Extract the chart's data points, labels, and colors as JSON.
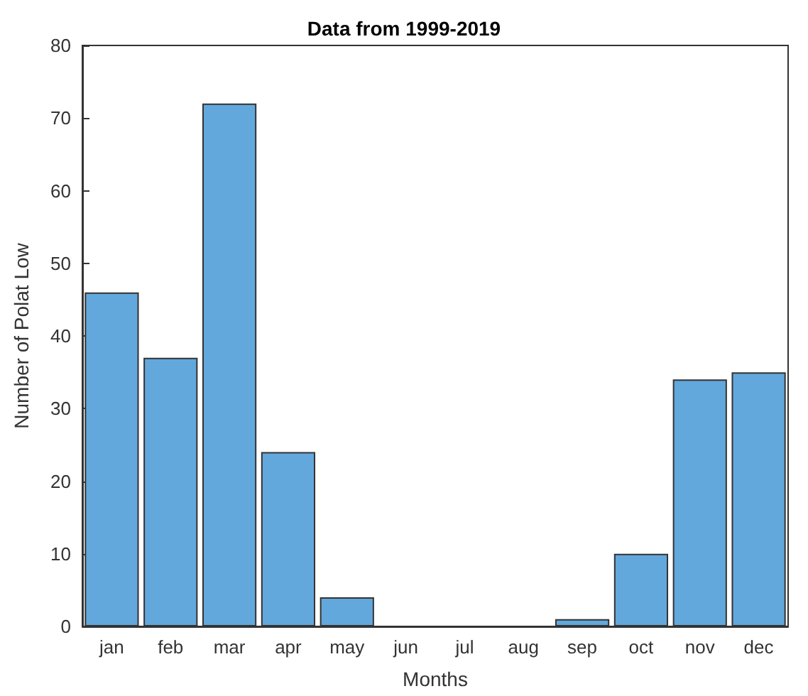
{
  "chart_data": {
    "type": "bar",
    "title": "Data from 1999-2019",
    "xlabel": "Months",
    "ylabel": "Number of Polat Low",
    "categories": [
      "jan",
      "feb",
      "mar",
      "apr",
      "may",
      "jun",
      "jul",
      "aug",
      "sep",
      "oct",
      "nov",
      "dec"
    ],
    "values": [
      46,
      37,
      72,
      24,
      4,
      0,
      0,
      0,
      1,
      10,
      34,
      35
    ],
    "color": "#62a8dc",
    "ylim": [
      0,
      80
    ],
    "yticks": [
      0,
      10,
      20,
      30,
      40,
      50,
      60,
      70,
      80
    ],
    "grid": false
  }
}
